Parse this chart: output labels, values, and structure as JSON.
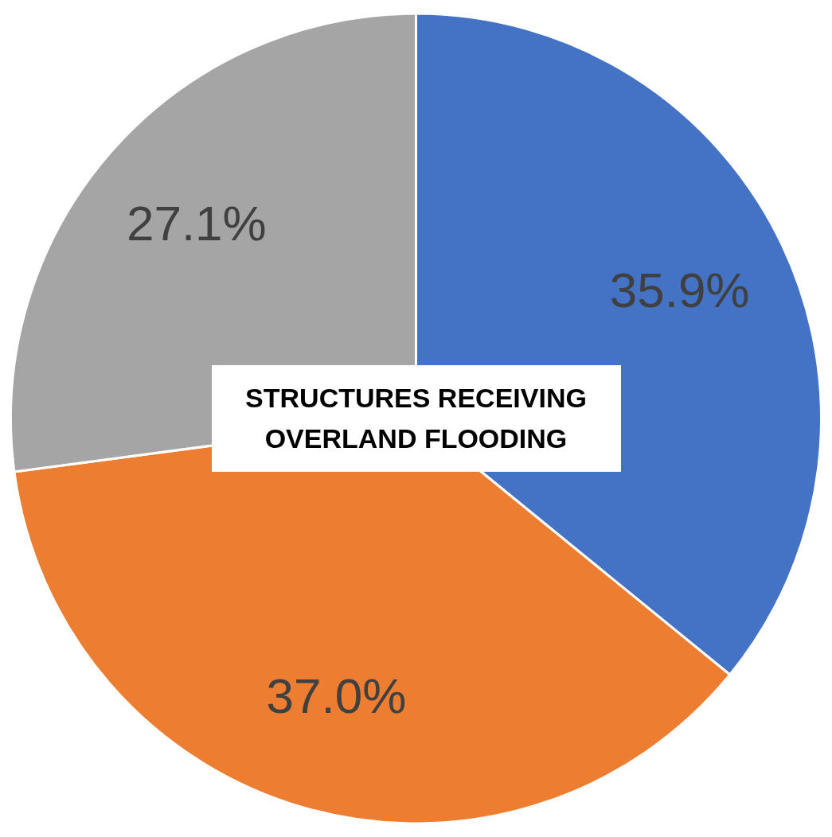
{
  "chart_data": {
    "type": "pie",
    "title": "STRUCTURES RECEIVING OVERLAND FLOODING",
    "categories": [
      null,
      null,
      null
    ],
    "values": [
      35.9,
      37.0,
      27.1
    ],
    "colors": [
      "#4472c4",
      "#ed7d31",
      "#a5a5a5"
    ],
    "value_labels": [
      "35.9%",
      "37.0%",
      "27.1%"
    ]
  }
}
